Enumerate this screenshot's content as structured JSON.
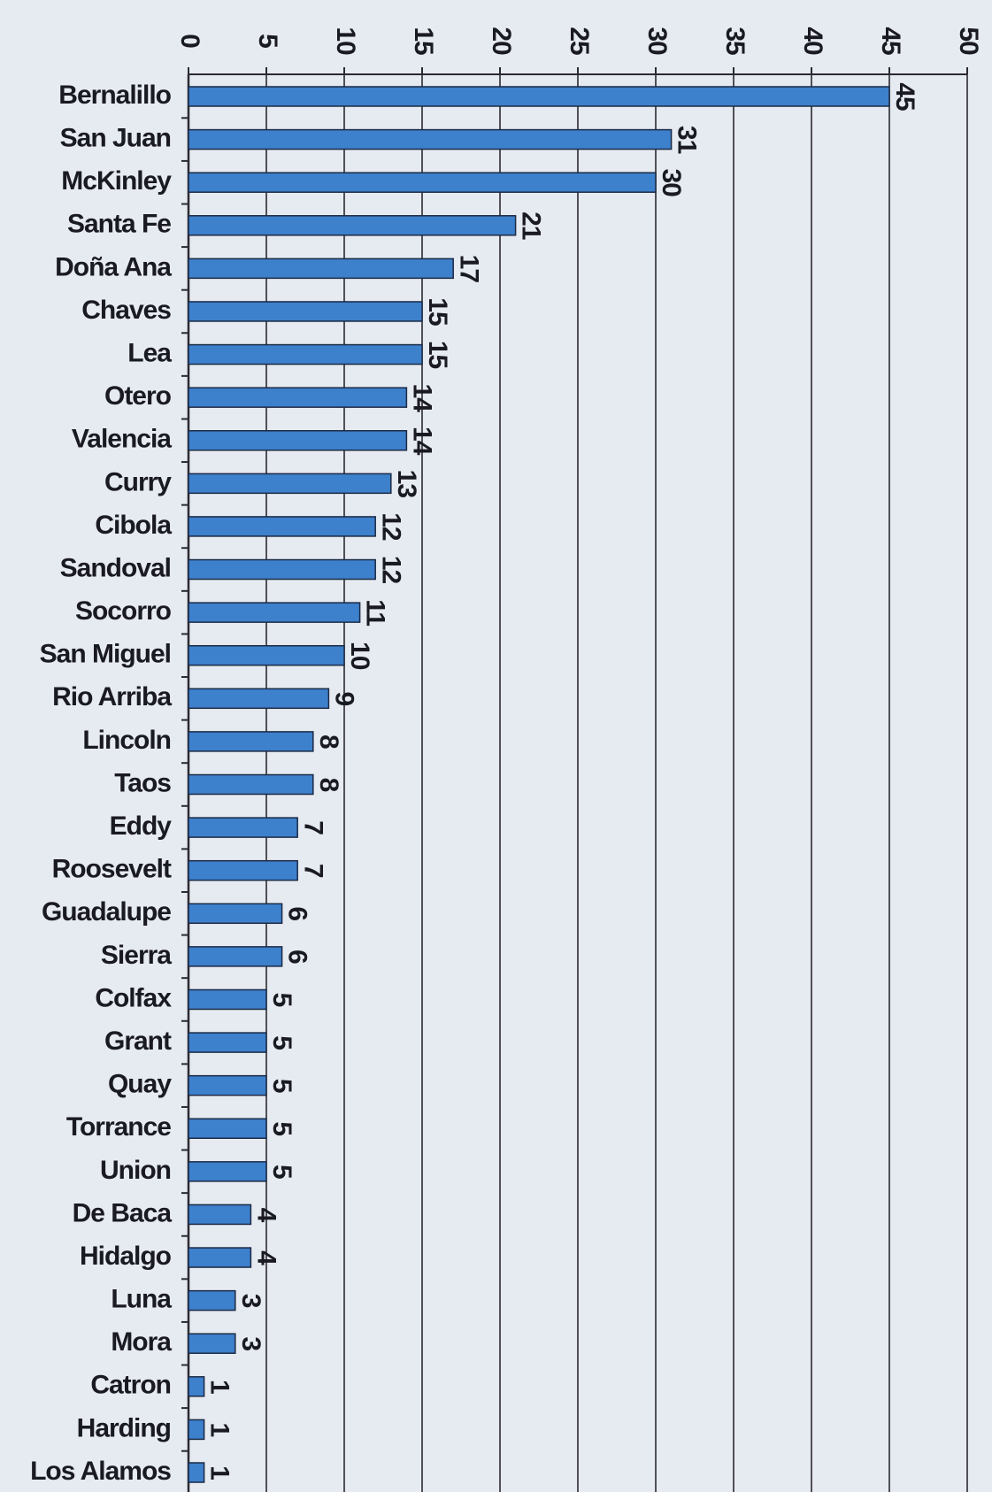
{
  "chart_data": {
    "type": "bar",
    "orientation": "horizontal",
    "categories": [
      "Bernalillo",
      "San Juan",
      "McKinley",
      "Santa Fe",
      "Doña Ana",
      "Chaves",
      "Lea",
      "Otero",
      "Valencia",
      "Curry",
      "Cibola",
      "Sandoval",
      "Socorro",
      "San Miguel",
      "Rio Arriba",
      "Lincoln",
      "Taos",
      "Eddy",
      "Roosevelt",
      "Guadalupe",
      "Sierra",
      "Colfax",
      "Grant",
      "Quay",
      "Torrance",
      "Union",
      "De Baca",
      "Hidalgo",
      "Luna",
      "Mora",
      "Catron",
      "Harding",
      "Los Alamos"
    ],
    "values": [
      45,
      31,
      30,
      21,
      17,
      15,
      15,
      14,
      14,
      13,
      12,
      12,
      11,
      10,
      9,
      8,
      8,
      7,
      7,
      6,
      6,
      5,
      5,
      5,
      5,
      5,
      4,
      4,
      3,
      3,
      1,
      1,
      1
    ],
    "color": "#3d80cc",
    "xlim": [
      0,
      50
    ],
    "xticks": [
      0,
      5,
      10,
      15,
      20,
      25,
      30,
      35,
      40,
      45,
      50
    ],
    "grid": true
  }
}
